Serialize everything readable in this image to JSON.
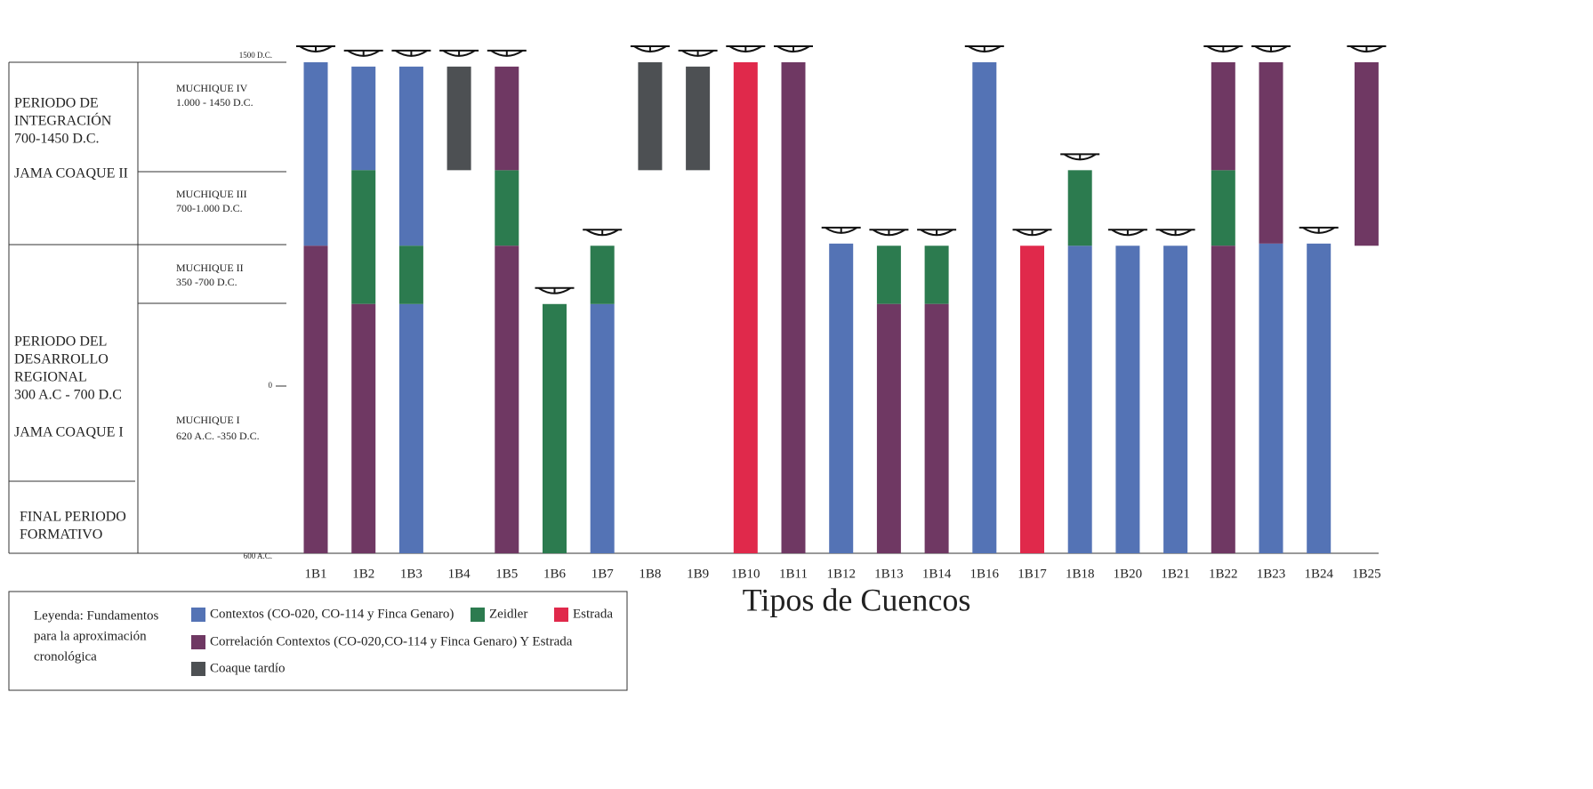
{
  "chart_data": {
    "type": "range-bar",
    "x_label": "Tipos de Cuencos",
    "categories": [
      "1B1",
      "1B2",
      "1B3",
      "1B4",
      "1B5",
      "1B6",
      "1B7",
      "1B8",
      "1B9",
      "1B10",
      "1B11",
      "1B12",
      "1B13",
      "1B14",
      "1B16",
      "1B17",
      "1B18",
      "1B20",
      "1B21",
      "1B22",
      "1B23",
      "1B24",
      "1B25"
    ],
    "ylim": [
      -600,
      1500
    ],
    "yticks": [
      {
        "value": 1500,
        "label": "1500 D.C."
      },
      0,
      {
        "value": -600,
        "label": "600 A.C."
      }
    ],
    "legend_title": [
      "Leyenda: Fundamentos",
      "para la aproximación",
      "cronológica"
    ],
    "series": [
      {
        "name": "Contextos (CO-020, CO-114 y Finca Genaro)",
        "color": "#5473b5",
        "values": [
          [
            [
              650,
              1500
            ]
          ],
          [
            [
              1000,
              1480
            ]
          ],
          [
            [
              -600,
              380
            ],
            [
              650,
              1480
            ]
          ],
          null,
          null,
          null,
          [
            [
              -600,
              380
            ]
          ],
          null,
          null,
          null,
          null,
          [
            [
              -600,
              660
            ]
          ],
          null,
          null,
          [
            [
              -600,
              1500
            ]
          ],
          null,
          [
            [
              -600,
              650
            ]
          ],
          [
            [
              -600,
              650
            ]
          ],
          [
            [
              -600,
              650
            ]
          ],
          null,
          [
            [
              -600,
              660
            ]
          ],
          [
            [
              -600,
              660
            ]
          ],
          null
        ]
      },
      {
        "name": "Zeidler",
        "color": "#2c7b4f",
        "values": [
          null,
          [
            [
              380,
              1000
            ]
          ],
          [
            [
              380,
              650
            ]
          ],
          null,
          [
            [
              650,
              1000
            ]
          ],
          [
            [
              -600,
              380
            ]
          ],
          [
            [
              380,
              650
            ]
          ],
          null,
          null,
          null,
          null,
          null,
          [
            [
              380,
              650
            ]
          ],
          [
            [
              380,
              650
            ]
          ],
          null,
          null,
          [
            [
              650,
              1000
            ]
          ],
          null,
          null,
          [
            [
              650,
              1000
            ]
          ],
          null,
          null,
          null
        ]
      },
      {
        "name": "Estrada",
        "color": "#e0294b",
        "values": [
          null,
          null,
          null,
          null,
          null,
          null,
          null,
          null,
          null,
          [
            [
              -600,
              1500
            ]
          ],
          null,
          null,
          null,
          null,
          null,
          [
            [
              -600,
              650
            ]
          ],
          null,
          null,
          null,
          null,
          null,
          null,
          null
        ]
      },
      {
        "name": "Correlación Contextos (CO-020,CO-114 y Finca Genaro) Y Estrada",
        "color": "#6f3863",
        "values": [
          [
            [
              -600,
              650
            ]
          ],
          [
            [
              -600,
              380
            ]
          ],
          null,
          null,
          [
            [
              -600,
              650
            ],
            [
              1000,
              1480
            ]
          ],
          null,
          null,
          null,
          null,
          null,
          [
            [
              -600,
              1500
            ]
          ],
          null,
          [
            [
              -600,
              380
            ]
          ],
          [
            [
              -600,
              380
            ]
          ],
          null,
          null,
          null,
          null,
          null,
          [
            [
              -600,
              650
            ],
            [
              1000,
              1500
            ]
          ],
          [
            [
              660,
              1500
            ]
          ],
          null,
          [
            [
              650,
              1500
            ]
          ]
        ]
      },
      {
        "name": "Coaque tardío",
        "color": "#4d5053",
        "values": [
          null,
          null,
          null,
          [
            [
              1000,
              1480
            ]
          ],
          null,
          null,
          null,
          [
            [
              1000,
              1500
            ]
          ],
          [
            [
              1000,
              1480
            ]
          ],
          null,
          null,
          null,
          null,
          null,
          null,
          null,
          null,
          null,
          null,
          null,
          null,
          null,
          null
        ]
      }
    ]
  },
  "period_table": {
    "periods": [
      {
        "lines": [
          "PERIODO DE",
          "INTEGRACIÓN",
          "700-1450 D.C.",
          "JAMA COAQUE II"
        ]
      },
      {
        "lines": [
          "PERIODO DEL",
          "DESARROLLO",
          "REGIONAL",
          "300 A.C - 700 D.C",
          "JAMA COAQUE I"
        ]
      },
      {
        "lines": [
          "FINAL PERIODO",
          "FORMATIVO"
        ]
      }
    ],
    "phases": [
      {
        "lines": [
          "MUCHIQUE IV",
          "1.000 - 1450 D.C."
        ]
      },
      {
        "lines": [
          "MUCHIQUE III",
          "700-1.000 D.C."
        ]
      },
      {
        "lines": [
          "MUCHIQUE II",
          "350 -700 D.C."
        ]
      },
      {
        "lines": [
          "MUCHIQUE I",
          "620  A.C. -350 D.C."
        ]
      }
    ]
  }
}
